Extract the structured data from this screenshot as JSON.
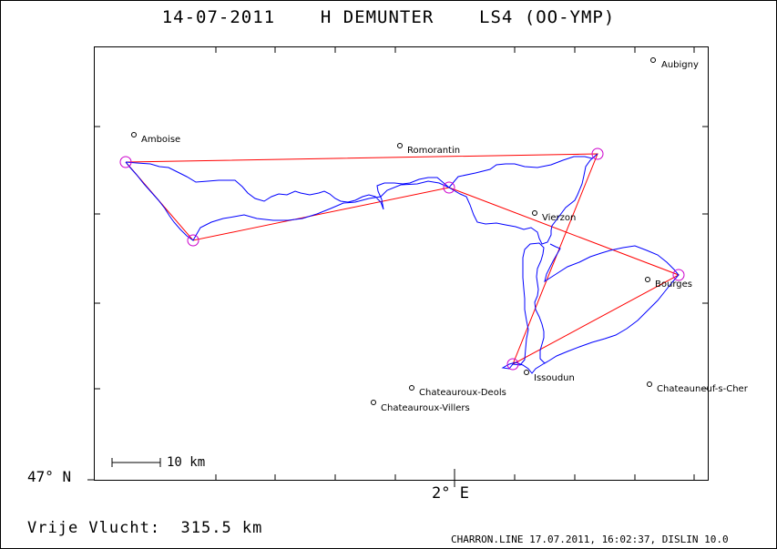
{
  "title": "14-07-2011    H DEMUNTER    LS4 (OO-YMP)",
  "latitude_label": "47° N",
  "longitude_label": "2° E",
  "scale_label": "10 km",
  "distance_label": "Vrije Vlucht:  315.5 km",
  "footer": "CHARRON.LINE 17.07.2011, 16:02:37, DISLIN 10.0",
  "colors": {
    "track": "#0000ff",
    "task": "#ff0000",
    "turnpoint": "#cc00cc"
  },
  "places": [
    {
      "name": "Aubigny"
    },
    {
      "name": "Amboise"
    },
    {
      "name": "Romorantin"
    },
    {
      "name": "Vierzon"
    },
    {
      "name": "Bourges"
    },
    {
      "name": "Issoudun"
    },
    {
      "name": "Chateauroux-Deols"
    },
    {
      "name": "Chateauroux-Villers"
    },
    {
      "name": "Chateauneuf-s-Cher"
    }
  ]
}
